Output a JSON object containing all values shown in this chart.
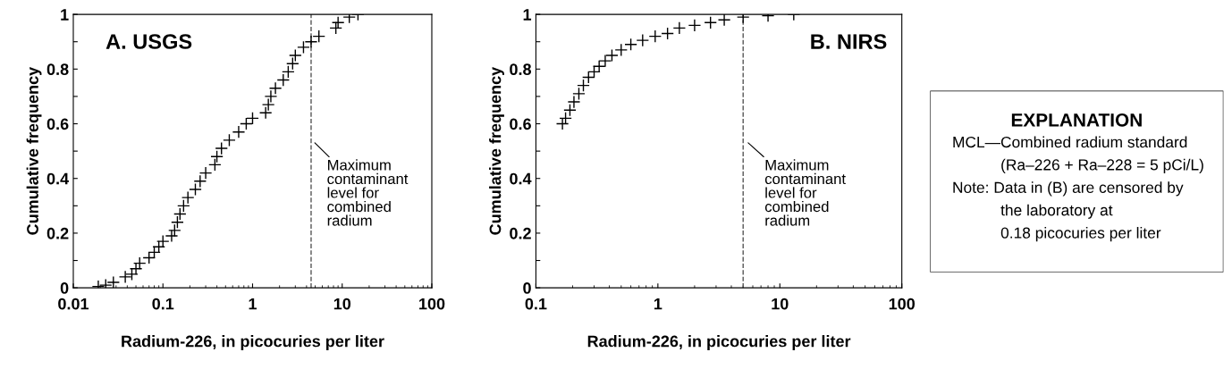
{
  "chart_data": [
    {
      "type": "scatter",
      "title": "A. USGS",
      "xlabel": "Radium-226, in picocuries per liter",
      "ylabel": "Cumulative frequency",
      "log": "x",
      "marker": "cross",
      "grid": false,
      "xlim": [
        0.01,
        100
      ],
      "xticks": [
        0.01,
        0.1,
        1,
        10,
        100
      ],
      "ylim": [
        0,
        1
      ],
      "yticks": [
        {
          "value": 0,
          "label": "0"
        },
        {
          "value": 0.1,
          "label": null
        },
        {
          "value": 0.2,
          "label": "0.2"
        },
        {
          "value": 0.3,
          "label": null
        },
        {
          "value": 0.4,
          "label": "0.4"
        },
        {
          "value": 0.5,
          "label": null
        },
        {
          "value": 0.6,
          "label": "0.6"
        },
        {
          "value": 0.7,
          "label": null
        },
        {
          "value": 0.8,
          "label": "0.8"
        },
        {
          "value": 0.9,
          "label": null
        },
        {
          "value": 1,
          "label": "1"
        }
      ],
      "ref_lines": [
        {
          "axis": "x",
          "value": 4.5,
          "label": "Maximum contaminant level for combined radium",
          "color": "#555555",
          "line_style": "dashed"
        }
      ],
      "series": [
        {
          "color": "#000000",
          "x": [
            0.019,
            0.023,
            0.028,
            0.038,
            0.045,
            0.05,
            0.055,
            0.07,
            0.08,
            0.09,
            0.1,
            0.125,
            0.135,
            0.145,
            0.155,
            0.17,
            0.19,
            0.23,
            0.26,
            0.3,
            0.38,
            0.4,
            0.45,
            0.55,
            0.7,
            0.85,
            1.0,
            1.4,
            1.5,
            1.6,
            1.8,
            2.2,
            2.5,
            2.8,
            3.0,
            3.7,
            4.5,
            5.5,
            8.5,
            9,
            12,
            15
          ],
          "values": [
            0.005,
            0.01,
            0.02,
            0.04,
            0.05,
            0.07,
            0.09,
            0.11,
            0.13,
            0.15,
            0.17,
            0.19,
            0.21,
            0.24,
            0.27,
            0.3,
            0.33,
            0.36,
            0.39,
            0.42,
            0.45,
            0.48,
            0.51,
            0.54,
            0.57,
            0.6,
            0.62,
            0.64,
            0.67,
            0.7,
            0.73,
            0.76,
            0.79,
            0.82,
            0.85,
            0.88,
            0.9,
            0.92,
            0.95,
            0.97,
            0.99,
            1.0
          ]
        }
      ]
    },
    {
      "type": "scatter",
      "title": "B. NIRS",
      "xlabel": "Radium-226, in picocuries per liter",
      "ylabel": "Cumulative frequency",
      "log": "x",
      "marker": "cross",
      "grid": false,
      "xlim": [
        0.1,
        100
      ],
      "xticks": [
        0.1,
        1,
        10,
        100
      ],
      "ylim": [
        0,
        1
      ],
      "yticks": [
        {
          "value": 0,
          "label": "0"
        },
        {
          "value": 0.1,
          "label": null
        },
        {
          "value": 0.2,
          "label": "0.2"
        },
        {
          "value": 0.3,
          "label": null
        },
        {
          "value": 0.4,
          "label": "0.4"
        },
        {
          "value": 0.5,
          "label": null
        },
        {
          "value": 0.6,
          "label": "0.6"
        },
        {
          "value": 0.7,
          "label": null
        },
        {
          "value": 0.8,
          "label": "0.8"
        },
        {
          "value": 0.9,
          "label": null
        },
        {
          "value": 1,
          "label": "1"
        }
      ],
      "ref_lines": [
        {
          "axis": "x",
          "value": 5,
          "label": "Maximum contaminant level for combined radium",
          "color": "#555555",
          "line_style": "dashed"
        }
      ],
      "series": [
        {
          "color": "#000000",
          "x": [
            0.165,
            0.175,
            0.19,
            0.205,
            0.225,
            0.245,
            0.27,
            0.3,
            0.33,
            0.37,
            0.42,
            0.5,
            0.6,
            0.75,
            0.95,
            1.2,
            1.5,
            2.0,
            2.7,
            3.5,
            5,
            8,
            13
          ],
          "values": [
            0.6,
            0.62,
            0.65,
            0.68,
            0.71,
            0.74,
            0.77,
            0.79,
            0.81,
            0.83,
            0.85,
            0.87,
            0.89,
            0.905,
            0.92,
            0.93,
            0.95,
            0.96,
            0.97,
            0.98,
            0.99,
            0.995,
            1.0
          ]
        }
      ]
    },
    {
      "type": "other",
      "title": "EXPLANATION",
      "annotations": [
        "MCL—Combined radium standard\n(Ra–226 + Ra–228 = 5 pCi/L)",
        "Note: Data in (B) are censored by\nthe laboratory at\n0.18 picocuries per liter"
      ]
    }
  ]
}
